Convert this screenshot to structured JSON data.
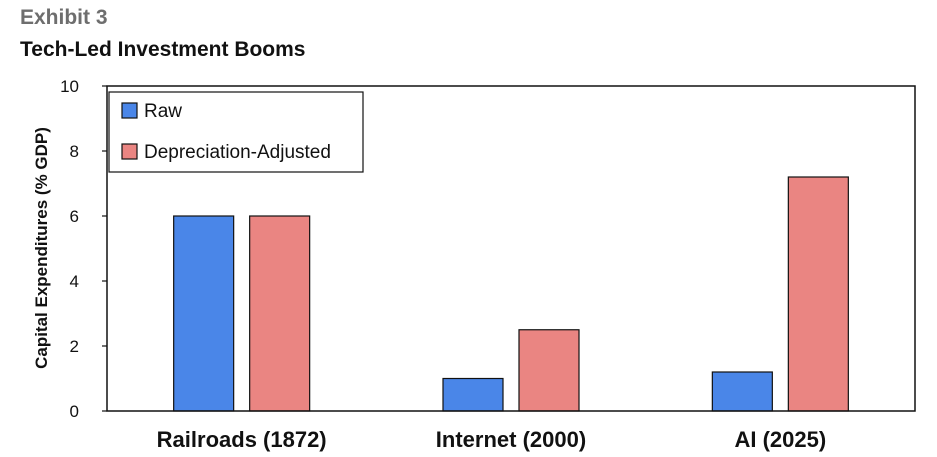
{
  "header": {
    "exhibit": "Exhibit 3",
    "title": "Tech-Led Investment Booms"
  },
  "chart_data": {
    "type": "bar",
    "categories": [
      "Railroads (1872)",
      "Internet (2000)",
      "AI (2025)"
    ],
    "series": [
      {
        "name": "Raw",
        "values": [
          6.0,
          1.0,
          1.2
        ],
        "color": "#4a86e8"
      },
      {
        "name": "Depreciation-Adjusted",
        "values": [
          6.0,
          2.5,
          7.2
        ],
        "color": "#ea8582"
      }
    ],
    "xlabel": "",
    "ylabel": "Capital Expenditures (% GDP)",
    "ylim": [
      0,
      10
    ],
    "yticks": [
      0,
      2,
      4,
      6,
      8,
      10
    ],
    "grid": false,
    "legend": "top-left"
  }
}
